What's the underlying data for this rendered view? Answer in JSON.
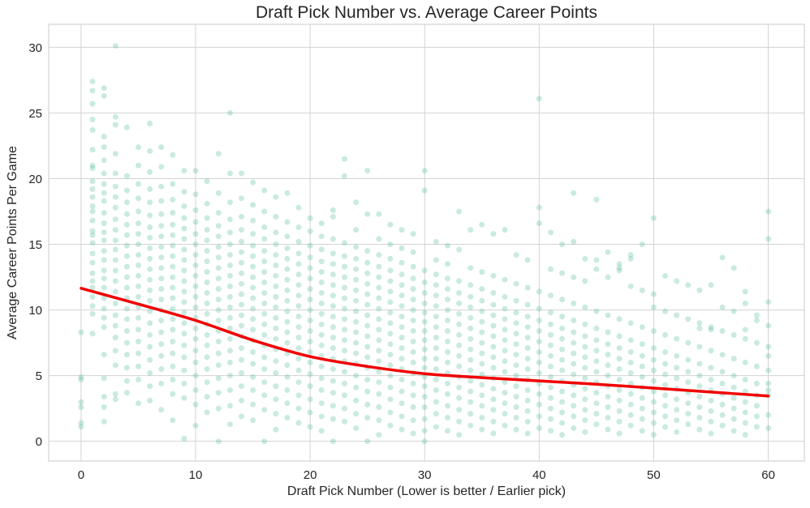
{
  "chart_data": {
    "type": "scatter",
    "title": "Draft Pick Number vs. Average Career Points",
    "xlabel": "Draft Pick Number (Lower is better / Earlier pick)",
    "ylabel": "Average Career Points Per Game",
    "xticks": [
      0,
      10,
      20,
      30,
      40,
      50,
      60
    ],
    "yticks": [
      0,
      5,
      10,
      15,
      20,
      25,
      30
    ],
    "xlim": [
      -2.83,
      63.15
    ],
    "ylim": [
      -1.5,
      31.75
    ],
    "grid": true,
    "legend": "none",
    "styles": {
      "background": "#ffffff",
      "grid_color": "#d3d3d3",
      "border_color": "#d3d3d3",
      "text_color": "#262626",
      "point_color": "#66c2a5",
      "point_opacity": 0.35,
      "point_radius": 3.5,
      "trend_color": "#f10000",
      "trend_width": 3.5
    },
    "scatter_columns": {
      "0": [
        8.3,
        4.9,
        4.7,
        3.0,
        2.6,
        1.4,
        1.1
      ],
      "1": [
        27.4,
        26.7,
        25.7,
        24.5,
        23.7,
        22.2,
        21.0,
        20.8,
        19.8,
        19.2,
        18.6,
        17.9,
        17.5,
        16.8,
        16.0,
        15.7,
        15.1,
        14.3,
        13.6,
        12.8,
        12.2,
        11.7,
        11.0,
        10.3,
        9.7,
        8.2
      ],
      "2": [
        26.9,
        26.3,
        23.2,
        22.4,
        21.4,
        20.4,
        19.6,
        18.9,
        18.3,
        17.4,
        16.6,
        15.9,
        15.3,
        14.5,
        13.8,
        13.0,
        12.4,
        11.7,
        10.9,
        10.1,
        9.4,
        8.7,
        6.6,
        4.8,
        3.4,
        2.6,
        1.5
      ],
      "3": [
        30.1,
        24.7,
        24.1,
        21.9,
        20.4,
        19.4,
        18.6,
        17.8,
        16.9,
        16.1,
        15.3,
        14.6,
        13.8,
        13.0,
        12.2,
        11.4,
        10.5,
        9.6,
        8.8,
        7.9,
        6.9,
        5.8,
        3.6,
        3.2
      ],
      "4": [
        23.9,
        20.2,
        19.1,
        18.2,
        17.3,
        16.5,
        15.7,
        14.9,
        14.1,
        13.3,
        12.5,
        11.7,
        10.9,
        10.1,
        9.3,
        8.4,
        7.5,
        6.6,
        5.6,
        4.6,
        3.7
      ],
      "5": [
        22.4,
        21.0,
        19.6,
        18.5,
        17.5,
        16.6,
        15.8,
        15.0,
        14.2,
        13.4,
        12.6,
        11.8,
        11.0,
        10.2,
        9.4,
        8.5,
        7.6,
        6.7,
        5.7,
        4.7,
        2.9
      ],
      "6": [
        24.2,
        22.1,
        20.5,
        19.2,
        18.2,
        17.2,
        16.3,
        15.5,
        14.7,
        13.9,
        13.1,
        12.3,
        11.5,
        10.7,
        9.9,
        9.0,
        8.1,
        7.2,
        6.2,
        5.2,
        4.2,
        3.1
      ],
      "7": [
        22.4,
        20.9,
        19.4,
        18.3,
        17.3,
        16.4,
        15.6,
        14.8,
        14.0,
        13.2,
        12.4,
        11.6,
        10.8,
        10.0,
        9.2,
        8.3,
        7.4,
        6.5,
        5.5,
        4.4,
        2.4
      ],
      "8": [
        21.8,
        19.6,
        18.4,
        17.4,
        16.5,
        15.7,
        14.9,
        14.1,
        13.3,
        12.5,
        11.7,
        10.9,
        10.1,
        9.3,
        8.5,
        7.6,
        6.7,
        5.7,
        4.7,
        3.6,
        1.6
      ],
      "9": [
        20.6,
        19.0,
        17.9,
        17.0,
        16.2,
        15.4,
        14.6,
        13.8,
        13.0,
        12.2,
        11.4,
        10.6,
        9.8,
        9.0,
        8.2,
        7.3,
        6.4,
        5.4,
        4.4,
        3.3,
        0.2
      ],
      "10": [
        20.6,
        18.8,
        17.6,
        16.7,
        15.8,
        15.0,
        14.2,
        13.4,
        12.6,
        11.8,
        11.0,
        10.2,
        9.4,
        8.6,
        7.8,
        6.9,
        6.0,
        5.0,
        3.9,
        2.8,
        1.2
      ],
      "11": [
        19.8,
        18.1,
        17.0,
        16.1,
        15.3,
        14.5,
        13.7,
        12.9,
        12.1,
        11.3,
        10.5,
        9.7,
        8.9,
        8.1,
        7.3,
        6.4,
        5.5,
        4.5,
        3.4,
        2.2
      ],
      "12": [
        21.9,
        18.9,
        17.4,
        16.4,
        15.6,
        14.8,
        14.0,
        13.2,
        12.4,
        11.6,
        10.8,
        10.0,
        9.2,
        8.4,
        7.6,
        6.7,
        5.8,
        4.8,
        3.7,
        2.5,
        0.0
      ],
      "13": [
        25.0,
        20.4,
        18.2,
        16.9,
        15.9,
        15.0,
        14.2,
        13.4,
        12.6,
        11.8,
        11.0,
        10.2,
        9.4,
        8.6,
        7.8,
        6.9,
        6.0,
        5.0,
        3.9,
        2.7,
        1.3
      ],
      "14": [
        20.4,
        18.5,
        17.1,
        16.1,
        15.2,
        14.4,
        13.6,
        12.8,
        12.0,
        11.2,
        10.4,
        9.6,
        8.8,
        8.0,
        7.1,
        6.2,
        5.2,
        4.2,
        3.1,
        1.9
      ],
      "15": [
        19.7,
        18.0,
        16.8,
        15.8,
        14.9,
        14.1,
        13.3,
        12.5,
        11.7,
        10.9,
        10.1,
        9.3,
        8.5,
        7.7,
        6.8,
        5.9,
        4.9,
        3.9,
        2.8,
        1.6
      ],
      "16": [
        19.1,
        17.5,
        16.3,
        15.4,
        14.5,
        13.7,
        12.9,
        12.1,
        11.3,
        10.5,
        9.7,
        8.9,
        8.1,
        7.3,
        6.4,
        5.5,
        4.5,
        3.5,
        2.4,
        0.0
      ],
      "17": [
        18.6,
        17.1,
        15.9,
        15.0,
        14.2,
        13.4,
        12.6,
        11.8,
        11.0,
        10.2,
        9.4,
        8.6,
        7.8,
        7.0,
        6.1,
        5.2,
        4.2,
        3.2,
        2.1,
        0.9
      ],
      "18": [
        18.9,
        16.7,
        15.6,
        14.7,
        13.9,
        13.1,
        12.3,
        11.5,
        10.7,
        9.9,
        9.1,
        8.3,
        7.5,
        6.7,
        5.8,
        4.9,
        3.9,
        2.9,
        1.8
      ],
      "19": [
        17.8,
        16.3,
        15.2,
        14.3,
        13.5,
        12.7,
        11.9,
        11.1,
        10.3,
        9.5,
        8.7,
        7.9,
        7.1,
        6.3,
        5.4,
        4.5,
        3.5,
        2.5,
        1.4
      ],
      "20": [
        17.0,
        16.0,
        14.9,
        14.0,
        13.2,
        12.4,
        11.6,
        10.8,
        10.0,
        9.2,
        8.4,
        7.6,
        6.8,
        6.0,
        5.1,
        4.2,
        3.2,
        2.2,
        1.1
      ],
      "21": [
        16.6,
        15.6,
        14.6,
        13.7,
        12.9,
        12.1,
        11.3,
        10.5,
        9.7,
        8.9,
        8.1,
        7.3,
        6.5,
        5.7,
        4.8,
        3.9,
        2.9,
        1.9,
        0.8
      ],
      "22": [
        17.6,
        17.1,
        15.4,
        14.3,
        13.5,
        12.7,
        11.9,
        11.1,
        10.3,
        9.5,
        8.7,
        7.9,
        7.1,
        6.3,
        5.5,
        4.6,
        3.7,
        2.7,
        1.7,
        0.0
      ],
      "23": [
        21.5,
        20.2,
        15.1,
        14.1,
        13.3,
        12.5,
        11.7,
        10.9,
        10.1,
        9.3,
        8.5,
        7.7,
        6.9,
        6.1,
        5.3,
        4.4,
        3.5,
        2.5,
        1.5
      ],
      "24": [
        18.2,
        16.1,
        14.8,
        13.9,
        13.1,
        12.3,
        11.5,
        10.7,
        9.9,
        9.1,
        8.3,
        7.5,
        6.7,
        5.9,
        5.0,
        4.1,
        3.1,
        2.1,
        1.0
      ],
      "25": [
        20.6,
        17.3,
        14.5,
        13.6,
        12.8,
        12.0,
        11.2,
        10.4,
        9.6,
        8.8,
        8.0,
        7.2,
        6.4,
        5.6,
        4.7,
        3.8,
        2.8,
        1.8,
        0.0
      ],
      "26": [
        17.3,
        15.4,
        14.2,
        13.3,
        12.5,
        11.7,
        10.9,
        10.1,
        9.3,
        8.5,
        7.7,
        6.9,
        6.1,
        5.3,
        4.5,
        3.6,
        2.6,
        1.6,
        0.5
      ],
      "27": [
        16.5,
        15.0,
        13.9,
        13.0,
        12.2,
        11.4,
        10.6,
        9.8,
        9.0,
        8.2,
        7.4,
        6.6,
        5.8,
        5.0,
        4.1,
        3.2,
        2.2,
        1.2
      ],
      "28": [
        16.1,
        14.7,
        13.6,
        12.7,
        11.9,
        11.1,
        10.3,
        9.5,
        8.7,
        7.9,
        7.1,
        6.3,
        5.5,
        4.7,
        3.8,
        2.9,
        1.9,
        0.9
      ],
      "29": [
        15.8,
        14.4,
        13.3,
        12.4,
        11.6,
        10.8,
        10.0,
        9.2,
        8.4,
        7.6,
        6.8,
        6.0,
        5.2,
        4.4,
        3.5,
        2.6,
        1.6,
        0.6
      ],
      "30": [
        20.6,
        19.1,
        13.0,
        12.1,
        11.3,
        10.5,
        9.8,
        9.1,
        8.4,
        7.7,
        7.0,
        6.3,
        5.6,
        4.9,
        4.2,
        3.4,
        2.6,
        1.7,
        0.8,
        0.0
      ],
      "31": [
        15.2,
        13.8,
        12.7,
        11.9,
        11.1,
        10.3,
        9.5,
        8.7,
        7.9,
        7.1,
        6.3,
        5.5,
        4.7,
        3.9,
        3.0,
        2.1,
        1.1
      ],
      "32": [
        14.9,
        13.5,
        12.4,
        11.6,
        10.8,
        10.0,
        9.2,
        8.4,
        7.6,
        6.8,
        6.0,
        5.2,
        4.4,
        3.6,
        2.7,
        1.8,
        0.8
      ],
      "33": [
        17.5,
        14.6,
        12.2,
        11.3,
        10.5,
        9.7,
        8.9,
        8.1,
        7.3,
        6.5,
        5.7,
        4.9,
        4.1,
        3.3,
        2.4,
        1.5,
        0.5
      ],
      "34": [
        16.1,
        13.2,
        11.9,
        11.0,
        10.2,
        9.4,
        8.6,
        7.8,
        7.0,
        6.2,
        5.4,
        4.6,
        3.8,
        3.0,
        2.1,
        1.2
      ],
      "35": [
        16.5,
        12.9,
        11.6,
        10.7,
        9.9,
        9.1,
        8.3,
        7.5,
        6.7,
        5.9,
        5.1,
        4.3,
        3.5,
        2.7,
        1.8,
        0.9
      ],
      "36": [
        15.8,
        12.6,
        11.3,
        10.4,
        9.6,
        8.8,
        8.0,
        7.2,
        6.4,
        5.6,
        4.8,
        4.0,
        3.2,
        2.4,
        1.5,
        0.6
      ],
      "37": [
        16.1,
        12.3,
        11.0,
        10.1,
        9.3,
        8.5,
        7.7,
        6.9,
        6.1,
        5.3,
        4.5,
        3.7,
        2.9,
        2.1,
        1.2
      ],
      "38": [
        14.2,
        12.0,
        10.7,
        9.8,
        9.0,
        8.2,
        7.4,
        6.6,
        5.8,
        5.0,
        4.2,
        3.4,
        2.6,
        1.8,
        0.9
      ],
      "39": [
        13.8,
        11.7,
        10.4,
        9.5,
        8.7,
        7.9,
        7.1,
        6.3,
        5.5,
        4.7,
        3.9,
        3.1,
        2.3,
        1.5,
        0.6
      ],
      "40": [
        26.1,
        17.8,
        16.6,
        11.4,
        10.1,
        9.2,
        8.4,
        7.6,
        6.8,
        6.0,
        5.2,
        4.4,
        3.6,
        2.8,
        1.9,
        1.0
      ],
      "41": [
        15.9,
        13.1,
        11.1,
        9.8,
        8.9,
        8.1,
        7.3,
        6.5,
        5.7,
        4.9,
        4.1,
        3.3,
        2.5,
        1.7,
        0.8
      ],
      "42": [
        15.0,
        12.8,
        10.8,
        9.5,
        8.6,
        7.8,
        7.0,
        6.2,
        5.4,
        4.6,
        3.8,
        3.0,
        2.2,
        1.4,
        0.5
      ],
      "43": [
        18.9,
        15.2,
        12.5,
        10.5,
        9.2,
        8.3,
        7.5,
        6.7,
        5.9,
        5.1,
        4.3,
        3.5,
        2.7,
        1.9,
        1.0
      ],
      "44": [
        13.9,
        12.2,
        10.2,
        8.9,
        8.0,
        7.2,
        6.4,
        5.6,
        4.8,
        4.0,
        3.2,
        2.4,
        1.6,
        0.7
      ],
      "45": [
        18.4,
        13.8,
        13.1,
        9.9,
        8.6,
        7.7,
        6.9,
        6.1,
        5.3,
        4.5,
        3.7,
        2.9,
        2.1,
        1.3
      ],
      "46": [
        14.4,
        12.5,
        9.6,
        8.3,
        7.4,
        6.6,
        5.8,
        5.0,
        4.2,
        3.4,
        2.6,
        1.8,
        0.9
      ],
      "47": [
        13.5,
        13.2,
        13.0,
        9.3,
        8.0,
        7.1,
        6.3,
        5.5,
        4.7,
        3.9,
        3.1,
        2.3,
        1.5,
        0.6
      ],
      "48": [
        14.2,
        13.9,
        11.8,
        9.0,
        7.7,
        6.8,
        6.0,
        5.2,
        4.4,
        3.6,
        2.8,
        2.0,
        1.2
      ],
      "49": [
        15.0,
        11.5,
        8.7,
        7.4,
        6.5,
        5.7,
        4.9,
        4.1,
        3.3,
        2.5,
        1.7,
        0.8
      ],
      "50": [
        17.0,
        11.2,
        10.2,
        8.4,
        7.1,
        6.2,
        5.4,
        4.6,
        3.8,
        3.0,
        2.2,
        1.4,
        0.5
      ],
      "51": [
        12.6,
        9.9,
        8.1,
        6.8,
        5.9,
        5.1,
        4.3,
        3.5,
        2.7,
        1.9,
        1.1
      ],
      "52": [
        12.2,
        9.6,
        7.8,
        6.5,
        5.6,
        4.8,
        4.0,
        3.2,
        2.4,
        1.6,
        0.7
      ],
      "53": [
        11.9,
        9.3,
        7.5,
        6.2,
        5.3,
        4.5,
        3.7,
        2.9,
        2.1,
        1.3
      ],
      "54": [
        11.5,
        9.0,
        8.6,
        7.2,
        5.9,
        5.0,
        4.2,
        3.4,
        2.6,
        1.8,
        0.9
      ],
      "55": [
        11.9,
        8.7,
        8.5,
        6.9,
        5.6,
        4.7,
        3.9,
        3.1,
        2.3,
        1.5,
        0.6
      ],
      "56": [
        14.0,
        10.2,
        8.4,
        6.6,
        5.3,
        4.4,
        3.6,
        2.8,
        2.0,
        1.2
      ],
      "57": [
        13.2,
        9.9,
        8.1,
        6.3,
        5.0,
        4.1,
        3.3,
        2.5,
        1.7,
        0.8
      ],
      "58": [
        11.4,
        10.5,
        8.5,
        7.8,
        6.0,
        4.7,
        3.8,
        3.0,
        2.2,
        1.4,
        0.5
      ],
      "59": [
        9.6,
        9.2,
        7.5,
        5.7,
        4.4,
        3.5,
        2.7,
        1.9,
        1.1
      ],
      "60": [
        17.5,
        15.4,
        10.6,
        8.8,
        7.2,
        6.5,
        5.4,
        4.4,
        3.9,
        3.5,
        2.0,
        1.0
      ]
    },
    "trend": {
      "x": [
        0,
        5,
        10,
        15,
        20,
        25,
        30,
        35,
        40,
        45,
        50,
        55,
        60
      ],
      "y": [
        11.65,
        10.45,
        9.2,
        7.7,
        6.45,
        5.7,
        5.15,
        4.85,
        4.6,
        4.35,
        4.05,
        3.75,
        3.45
      ]
    }
  }
}
